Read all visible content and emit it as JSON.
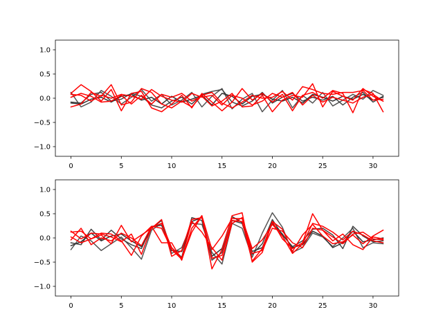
{
  "chart_data": [
    {
      "type": "line",
      "xlim": [
        -1.55,
        32.55
      ],
      "ylim": [
        -1.2,
        1.2
      ],
      "xticks": [
        0,
        5,
        10,
        15,
        20,
        25,
        30
      ],
      "xtick_labels": [
        "0",
        "5",
        "10",
        "15",
        "20",
        "25",
        "30"
      ],
      "yticks": [
        -1.0,
        -0.5,
        0.0,
        0.5,
        1.0
      ],
      "ytick_labels": [
        "−1.0",
        "−0.5",
        "0.0",
        "0.5",
        "1.0"
      ],
      "grid": false,
      "legend": "none",
      "x": [
        0,
        1,
        2,
        3,
        4,
        5,
        6,
        7,
        8,
        9,
        10,
        11,
        12,
        13,
        14,
        15,
        16,
        17,
        18,
        19,
        20,
        21,
        22,
        23,
        24,
        25,
        26,
        27,
        28,
        29,
        30,
        31
      ],
      "series": [
        {
          "color": "#555555",
          "values": [
            0.12,
            -0.18,
            -0.08,
            0.16,
            0.04,
            -0.12,
            0.02,
            0.18,
            -0.06,
            0.08,
            -0.14,
            -0.04,
            0.12,
            -0.18,
            0.04,
            0.2,
            -0.22,
            -0.02,
            0.1,
            -0.28,
            -0.04,
            0.16,
            -0.2,
            0.06,
            -0.1,
            0.12,
            -0.16,
            -0.04,
            0.08,
            -0.02,
            0.16,
            0.06
          ]
        },
        {
          "color": "#444444",
          "values": [
            -0.08,
            -0.1,
            0.08,
            0.12,
            -0.06,
            -0.02,
            0.1,
            0.04,
            -0.14,
            -0.2,
            -0.06,
            0.02,
            -0.12,
            0.08,
            0.14,
            0.18,
            -0.08,
            -0.16,
            -0.06,
            0.12,
            -0.1,
            0.02,
            0.1,
            -0.06,
            0.02,
            -0.04,
            0.04,
            -0.14,
            0.02,
            0.12,
            -0.08,
            0.04
          ]
        },
        {
          "color": "#333333",
          "values": [
            -0.1,
            -0.12,
            -0.02,
            0.02,
            -0.08,
            0.04,
            0.08,
            -0.04,
            0.02,
            -0.12,
            0.04,
            -0.08,
            -0.02,
            0.06,
            -0.14,
            0.1,
            0.04,
            -0.12,
            0.04,
            0.08,
            -0.02,
            -0.06,
            0.02,
            -0.1,
            0.08,
            0.02,
            -0.06,
            0.04,
            -0.02,
            0.08,
            -0.04,
            0.02
          ]
        },
        {
          "color": "#ff0000",
          "values": [
            0.1,
            0.28,
            0.14,
            -0.06,
            0.18,
            -0.26,
            0.1,
            0.14,
            -0.2,
            -0.28,
            -0.12,
            0.06,
            -0.2,
            0.1,
            -0.08,
            -0.26,
            -0.08,
            0.2,
            -0.04,
            0.1,
            -0.08,
            0.08,
            -0.26,
            0.06,
            0.12,
            0.0,
            0.16,
            0.1,
            -0.3,
            0.18,
            0.1,
            -0.28
          ]
        },
        {
          "color": "#ff0000",
          "values": [
            -0.18,
            -0.12,
            0.12,
            0.04,
            0.28,
            -0.14,
            -0.08,
            0.2,
            0.12,
            -0.12,
            -0.2,
            -0.06,
            -0.18,
            0.06,
            0.12,
            -0.1,
            -0.2,
            -0.08,
            0.06,
            0.0,
            0.02,
            0.14,
            -0.04,
            0.24,
            0.18,
            0.1,
            0.08,
            0.12,
            0.12,
            0.16,
            -0.04,
            -0.02
          ]
        },
        {
          "color": "#ff0000",
          "values": [
            0.08,
            0.06,
            -0.06,
            0.06,
            0.0,
            0.08,
            0.04,
            -0.02,
            0.18,
            0.04,
            -0.04,
            -0.08,
            0.1,
            0.02,
            0.06,
            -0.14,
            0.06,
            0.0,
            -0.14,
            -0.06,
            0.1,
            0.02,
            0.12,
            -0.14,
            0.06,
            -0.08,
            0.02,
            -0.04,
            -0.1,
            0.02,
            0.08,
            -0.06
          ]
        },
        {
          "color": "#ff0000",
          "values": [
            0.02,
            0.1,
            0.04,
            -0.08,
            -0.06,
            0.06,
            -0.12,
            0.06,
            -0.12,
            0.08,
            0.02,
            0.1,
            -0.06,
            0.04,
            -0.16,
            -0.06,
            0.1,
            -0.18,
            -0.16,
            0.06,
            -0.28,
            -0.04,
            0.06,
            0.02,
            0.3,
            -0.18,
            0.14,
            0.04,
            -0.04,
            0.2,
            0.04,
            -0.06
          ]
        }
      ]
    },
    {
      "type": "line",
      "xlim": [
        -1.55,
        32.55
      ],
      "ylim": [
        -1.2,
        1.2
      ],
      "xticks": [
        0,
        5,
        10,
        15,
        20,
        25,
        30
      ],
      "xtick_labels": [
        "0",
        "5",
        "10",
        "15",
        "20",
        "25",
        "30"
      ],
      "yticks": [
        -1.0,
        -0.5,
        0.0,
        0.5,
        1.0
      ],
      "ytick_labels": [
        "−1.0",
        "−0.5",
        "0.0",
        "0.5",
        "1.0"
      ],
      "grid": false,
      "legend": "none",
      "x": [
        0,
        1,
        2,
        3,
        4,
        5,
        6,
        7,
        8,
        9,
        10,
        11,
        12,
        13,
        14,
        15,
        16,
        17,
        18,
        19,
        20,
        21,
        22,
        23,
        24,
        25,
        26,
        27,
        28,
        29,
        30,
        31
      ],
      "series": [
        {
          "color": "#555555",
          "values": [
            -0.24,
            0.04,
            -0.06,
            -0.26,
            -0.12,
            0.02,
            -0.2,
            -0.44,
            0.16,
            0.3,
            -0.32,
            -0.2,
            0.3,
            0.28,
            -0.3,
            -0.54,
            0.3,
            0.2,
            -0.4,
            0.1,
            0.52,
            0.22,
            -0.3,
            -0.2,
            0.1,
            0.02,
            -0.18,
            0.0,
            0.2,
            -0.2,
            -0.1,
            -0.12
          ]
        },
        {
          "color": "#444444",
          "values": [
            -0.1,
            -0.14,
            0.18,
            -0.04,
            0.16,
            -0.02,
            -0.14,
            -0.22,
            0.24,
            0.26,
            -0.2,
            -0.4,
            0.42,
            0.36,
            -0.46,
            -0.3,
            0.36,
            0.3,
            -0.34,
            -0.12,
            0.38,
            0.06,
            -0.18,
            -0.06,
            0.18,
            0.2,
            0.06,
            -0.22,
            0.24,
            0.04,
            -0.08,
            -0.06
          ]
        },
        {
          "color": "#333333",
          "values": [
            -0.16,
            -0.08,
            0.1,
            -0.06,
            0.04,
            0.08,
            -0.06,
            -0.18,
            0.2,
            0.36,
            -0.26,
            -0.28,
            0.34,
            0.42,
            -0.38,
            -0.22,
            0.44,
            0.32,
            -0.28,
            -0.2,
            0.3,
            0.08,
            -0.2,
            -0.14,
            0.14,
            0.04,
            -0.2,
            -0.1,
            0.14,
            -0.08,
            -0.04,
            0.0
          ]
        },
        {
          "color": "#ff0000",
          "values": [
            0.12,
            0.14,
            -0.02,
            0.1,
            0.08,
            -0.06,
            -0.36,
            0.04,
            0.24,
            -0.1,
            -0.1,
            -0.46,
            0.2,
            0.46,
            -0.64,
            -0.24,
            0.46,
            0.52,
            -0.5,
            -0.3,
            0.34,
            -0.02,
            -0.22,
            -0.1,
            0.5,
            0.16,
            -0.06,
            0.08,
            -0.14,
            -0.24,
            0.02,
            -0.02
          ]
        },
        {
          "color": "#ff0000",
          "values": [
            0.02,
            -0.1,
            -0.02,
            0.06,
            -0.12,
            0.26,
            -0.08,
            0.06,
            0.2,
            0.38,
            -0.38,
            -0.26,
            0.38,
            0.42,
            -0.42,
            -0.36,
            0.36,
            0.34,
            -0.48,
            -0.22,
            0.34,
            0.18,
            -0.28,
            0.06,
            0.28,
            0.04,
            -0.12,
            -0.08,
            0.06,
            -0.12,
            0.04,
            0.16
          ]
        },
        {
          "color": "#ff0000",
          "values": [
            -0.04,
            0.2,
            -0.14,
            0.0,
            -0.06,
            0.1,
            0.0,
            -0.16,
            0.24,
            0.2,
            -0.24,
            -0.44,
            0.12,
            0.46,
            -0.24,
            0.04,
            0.4,
            0.4,
            -0.22,
            -0.04,
            0.28,
            0.04,
            -0.32,
            -0.12,
            0.3,
            0.24,
            0.12,
            -0.04,
            0.14,
            0.06,
            -0.06,
            -0.1
          ]
        },
        {
          "color": "#ff0000",
          "values": [
            0.14,
            -0.02,
            0.1,
            0.08,
            0.02,
            -0.08,
            0.08,
            -0.34,
            0.22,
            0.3,
            -0.2,
            -0.42,
            0.34,
            0.12,
            -0.2,
            -0.46,
            0.3,
            0.42,
            -0.32,
            -0.26,
            0.2,
            0.14,
            -0.1,
            -0.2,
            0.2,
            0.16,
            0.02,
            -0.12,
            0.08,
            0.12,
            -0.02,
            -0.04
          ]
        }
      ]
    }
  ]
}
